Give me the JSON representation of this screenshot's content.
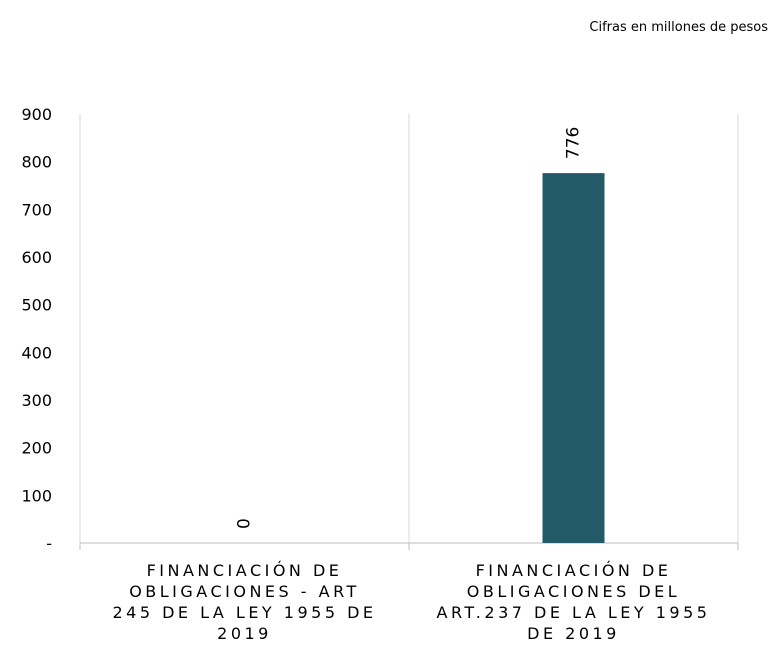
{
  "note": "Cifras en millones de pesos",
  "chart_data": {
    "type": "bar",
    "title": "",
    "xlabel": "",
    "ylabel": "",
    "ylim": [
      0,
      900
    ],
    "yticks": [
      0,
      100,
      200,
      300,
      400,
      500,
      600,
      700,
      800,
      900
    ],
    "ytick_labels": [
      "-",
      "100",
      "200",
      "300",
      "400",
      "500",
      "600",
      "700",
      "800",
      "900"
    ],
    "categories": [
      "FINANCIACIÓN DE\nOBLIGACIONES - ART\n245 DE LA LEY 1955 DE\n2019",
      "FINANCIACIÓN DE\nOBLIGACIONES DEL\nART.237 DE LA LEY 1955\nDE 2019"
    ],
    "values": [
      0,
      776
    ],
    "data_labels": [
      "0",
      "776"
    ],
    "grid": "vertical category separators",
    "bar_color": "#235a68"
  }
}
